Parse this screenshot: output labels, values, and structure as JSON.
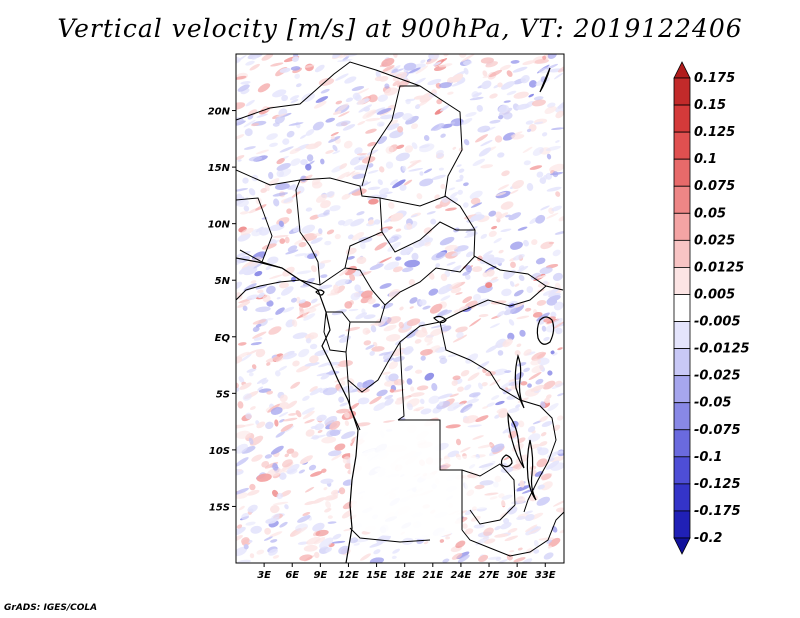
{
  "title": "Vertical velocity [m/s] at 900hPa, VT: 2019122406",
  "footer": "GrADS: IGES/COLA",
  "chart_data": {
    "type": "heatmap",
    "variable": "Vertical velocity",
    "units": "m/s",
    "level": "900hPa",
    "valid_time": "2019122406",
    "lon_range": [
      0,
      35
    ],
    "lat_range": [
      -20,
      25
    ],
    "lon_ticks": [
      "3E",
      "6E",
      "9E",
      "12E",
      "15E",
      "18E",
      "21E",
      "24E",
      "27E",
      "30E",
      "33E"
    ],
    "lat_ticks": [
      "20N",
      "15N",
      "10N",
      "5N",
      "EQ",
      "5S",
      "10S",
      "15S"
    ],
    "colorbar": {
      "orientation": "vertical",
      "levels": [
        "0.175",
        "0.15",
        "0.125",
        "0.1",
        "0.075",
        "0.05",
        "0.025",
        "0.0125",
        "0.005",
        "-0.005",
        "-0.0125",
        "-0.025",
        "-0.05",
        "-0.075",
        "-0.1",
        "-0.125",
        "-0.175",
        "-0.2"
      ],
      "colors": [
        "#b01c1c",
        "#c22a2a",
        "#d43a3a",
        "#e05050",
        "#e76a6a",
        "#ee8686",
        "#f4a4a4",
        "#f8c4c4",
        "#fce4e4",
        "#ffffff",
        "#e4e4fc",
        "#c8c8f6",
        "#a6a6ee",
        "#8888e6",
        "#6a6ade",
        "#4e4ed6",
        "#3434c8",
        "#2020b6",
        "#12129c"
      ]
    }
  }
}
